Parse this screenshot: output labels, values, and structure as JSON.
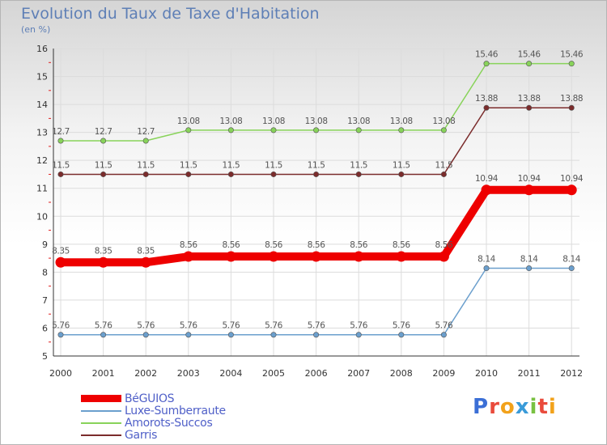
{
  "header": {
    "title": "Evolution du Taux de Taxe d'Habitation",
    "subtitle": "(en %)"
  },
  "logo": {
    "text": "Proxiti"
  },
  "colors": {
    "grid": "#dcdcdc",
    "axis": "#333333",
    "tick_text": "#333333",
    "label_text": "#555555"
  },
  "chart_data": {
    "type": "line",
    "x": [
      "2000",
      "2001",
      "2002",
      "2003",
      "2004",
      "2005",
      "2006",
      "2007",
      "2008",
      "2009",
      "2010",
      "2011",
      "2012"
    ],
    "ylim": [
      5,
      16
    ],
    "yticks": [
      5,
      6,
      7,
      8,
      9,
      10,
      11,
      12,
      13,
      14,
      15,
      16
    ],
    "grid": true,
    "legend_position": "bottom-left",
    "series": [
      {
        "name": "BéGUIOS",
        "color": "#ee0000",
        "emphasis": true,
        "values": [
          8.35,
          8.35,
          8.35,
          8.56,
          8.56,
          8.56,
          8.56,
          8.56,
          8.56,
          8.56,
          10.94,
          10.94,
          10.94
        ],
        "labels": [
          "8.35",
          "8.35",
          "8.35",
          "8.56",
          "8.56",
          "8.56",
          "8.56",
          "8.56",
          "8.56",
          "8.56",
          "10.94",
          "10.94",
          "10.94"
        ]
      },
      {
        "name": "Luxe-Sumberraute",
        "color": "#6b9fcd",
        "emphasis": false,
        "values": [
          5.76,
          5.76,
          5.76,
          5.76,
          5.76,
          5.76,
          5.76,
          5.76,
          5.76,
          5.76,
          8.14,
          8.14,
          8.14
        ],
        "labels": [
          "5.76",
          "5.76",
          "5.76",
          "5.76",
          "5.76",
          "5.76",
          "5.76",
          "5.76",
          "5.76",
          "5.76",
          "8.14",
          "8.14",
          "8.14"
        ]
      },
      {
        "name": "Amorots-Succos",
        "color": "#88d35a",
        "emphasis": false,
        "values": [
          12.7,
          12.7,
          12.7,
          13.08,
          13.08,
          13.08,
          13.08,
          13.08,
          13.08,
          13.08,
          15.46,
          15.46,
          15.46
        ],
        "labels": [
          "12.7",
          "12.7",
          "12.7",
          "13.08",
          "13.08",
          "13.08",
          "13.08",
          "13.08",
          "13.08",
          "13.08",
          "15.46",
          "15.46",
          "15.46"
        ]
      },
      {
        "name": "Garris",
        "color": "#7b2c2c",
        "emphasis": false,
        "values": [
          11.5,
          11.5,
          11.5,
          11.5,
          11.5,
          11.5,
          11.5,
          11.5,
          11.5,
          11.5,
          13.88,
          13.88,
          13.88
        ],
        "labels": [
          "11.5",
          "11.5",
          "11.5",
          "11.5",
          "11.5",
          "11.5",
          "11.5",
          "11.5",
          "11.5",
          "11.5",
          "13.88",
          "13.88",
          "13.88"
        ]
      }
    ]
  }
}
